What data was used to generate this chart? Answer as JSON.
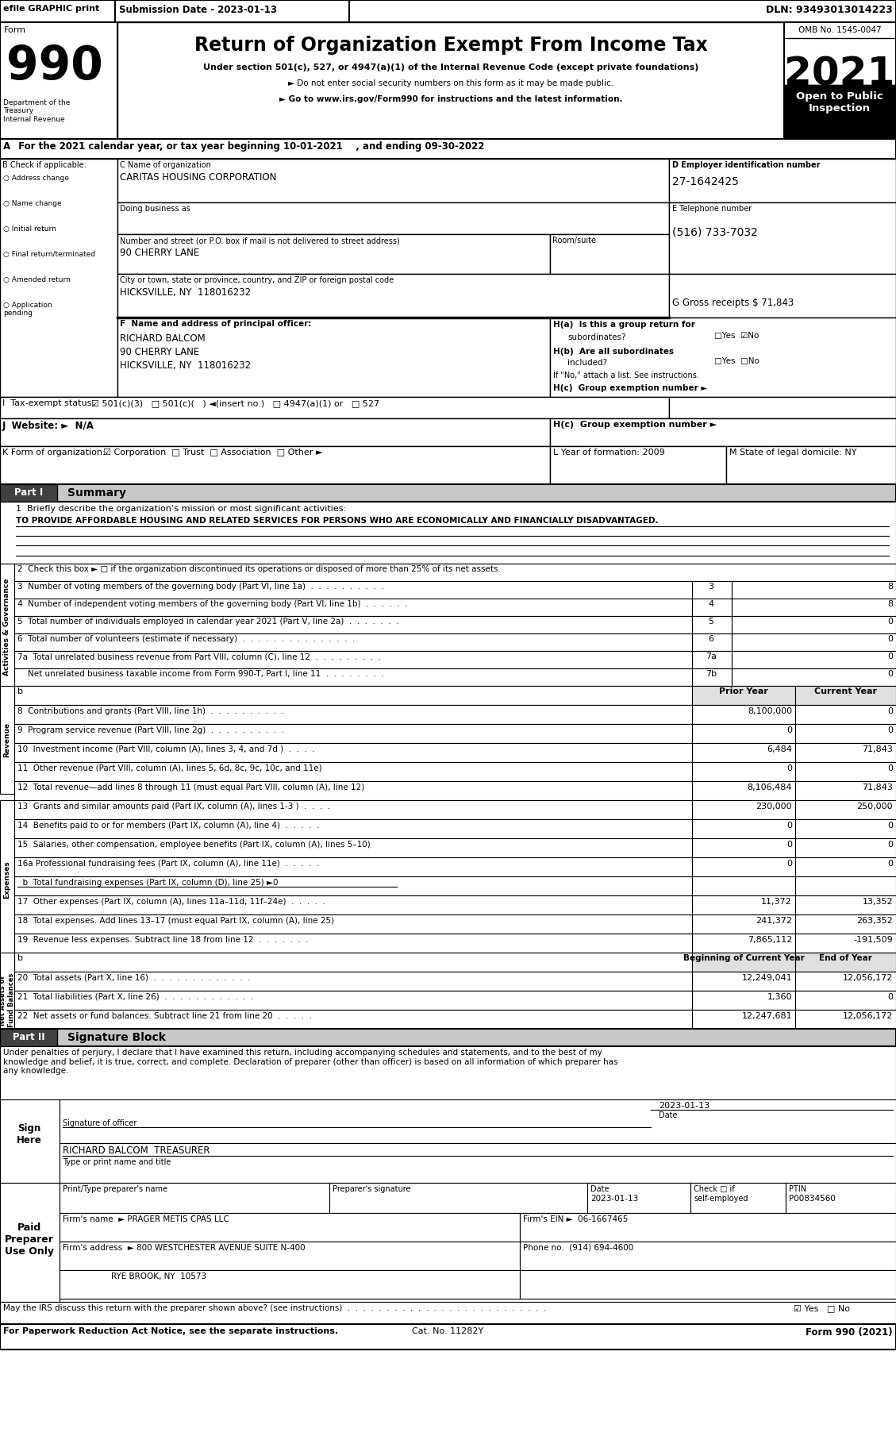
{
  "title": "Return of Organization Exempt From Income Tax",
  "form_number": "990",
  "year": "2021",
  "omb": "OMB No. 1545-0047",
  "open_to_public": "Open to Public\nInspection",
  "efile_text": "efile GRAPHIC print",
  "submission_date": "Submission Date - 2023-01-13",
  "dln": "DLN: 93493013014223",
  "subtitle1": "Under section 501(c), 527, or 4947(a)(1) of the Internal Revenue Code (except private foundations)",
  "bullet1": "► Do not enter social security numbers on this form as it may be made public.",
  "bullet2": "► Go to www.irs.gov/Form990 for instructions and the latest information.",
  "service_line": "A  For the 2021 calendar year, or tax year beginning 10-01-2021    , and ending 09-30-2022",
  "b_label": "B Check if applicable:",
  "check_items": [
    "Address change",
    "Name change",
    "Initial return",
    "Final return/terminated",
    "Amended return",
    "Application\npending"
  ],
  "c_label": "C Name of organization",
  "org_name": "CARITAS HOUSING CORPORATION",
  "dba_label": "Doing business as",
  "street_label": "Number and street (or P.O. box if mail is not delivered to street address)",
  "room_label": "Room/suite",
  "street": "90 CHERRY LANE",
  "city_label": "City or town, state or province, country, and ZIP or foreign postal code",
  "city": "HICKSVILLE, NY  118016232",
  "d_label": "D Employer identification number",
  "ein": "27-1642425",
  "e_label": "E Telephone number",
  "phone": "(516) 733-7032",
  "g_label": "G Gross receipts $ 71,843",
  "f_label": "F  Name and address of principal officer:",
  "principal_name": "RICHARD BALCOM",
  "principal_addr1": "90 CHERRY LANE",
  "principal_addr2": "HICKSVILLE, NY  118016232",
  "ha_label": "H(a)  Is this a group return for",
  "ha_sub": "subordinates?",
  "hb_label": "H(b)  Are all subordinates",
  "hb_sub": "included?",
  "hb_note": "If \"No,\" attach a list. See instructions.",
  "hc_label": "H(c)  Group exemption number ►",
  "i_label": "I  Tax-exempt status:",
  "j_label": "J  Website: ►  N/A",
  "k_label": "K Form of organization:",
  "l_label": "L Year of formation: 2009",
  "m_label": "M State of legal domicile: NY",
  "part1_label": "Part I",
  "part1_title": "Summary",
  "line1_label": "1  Briefly describe the organization’s mission or most significant activities:",
  "line1_value": "TO PROVIDE AFFORDABLE HOUSING AND RELATED SERVICES FOR PERSONS WHO ARE ECONOMICALLY AND FINANCIALLY DISADVANTAGED.",
  "line2_label": "2  Check this box ► □ if the organization discontinued its operations or disposed of more than 25% of its net assets.",
  "line3_label": "3  Number of voting members of the governing body (Part VI, line 1a)  .  .  .  .  .  .  .  .  .  .",
  "line3_num": "3",
  "line3_val": "8",
  "line4_label": "4  Number of independent voting members of the governing body (Part VI, line 1b)  .  .  .  .  .  .",
  "line4_num": "4",
  "line4_val": "8",
  "line5_label": "5  Total number of individuals employed in calendar year 2021 (Part V, line 2a)  .  .  .  .  .  .  .",
  "line5_num": "5",
  "line5_val": "0",
  "line6_label": "6  Total number of volunteers (estimate if necessary)  .  .  .  .  .  .  .  .  .  .  .  .  .  .  .",
  "line6_num": "6",
  "line6_val": "0",
  "line7a_label": "7a  Total unrelated business revenue from Part VIII, column (C), line 12  .  .  .  .  .  .  .  .  .",
  "line7a_num": "7a",
  "line7a_val": "0",
  "line7b_label": "    Net unrelated business taxable income from Form 990-T, Part I, line 11  .  .  .  .  .  .  .  .",
  "line7b_num": "7b",
  "line7b_val": "0",
  "col_prior": "Prior Year",
  "col_current": "Current Year",
  "line8_label": "8  Contributions and grants (Part VIII, line 1h)  .  .  .  .  .  .  .  .  .  .",
  "line8_prior": "8,100,000",
  "line8_current": "0",
  "line9_label": "9  Program service revenue (Part VIII, line 2g)  .  .  .  .  .  .  .  .  .  .",
  "line9_prior": "0",
  "line9_current": "0",
  "line10_label": "10  Investment income (Part VIII, column (A), lines 3, 4, and 7d )  .  .  .  .",
  "line10_prior": "6,484",
  "line10_current": "71,843",
  "line11_label": "11  Other revenue (Part VIII, column (A), lines 5, 6d, 8c, 9c, 10c, and 11e)",
  "line11_prior": "0",
  "line11_current": "0",
  "line12_label": "12  Total revenue—add lines 8 through 11 (must equal Part VIII, column (A), line 12)",
  "line12_prior": "8,106,484",
  "line12_current": "71,843",
  "line13_label": "13  Grants and similar amounts paid (Part IX, column (A), lines 1-3 )  .  .  .  .",
  "line13_prior": "230,000",
  "line13_current": "250,000",
  "line14_label": "14  Benefits paid to or for members (Part IX, column (A), line 4)  .  .  .  .  .",
  "line14_prior": "0",
  "line14_current": "0",
  "line15_label": "15  Salaries, other compensation, employee benefits (Part IX, column (A), lines 5–10)",
  "line15_prior": "0",
  "line15_current": "0",
  "line16a_label": "16a Professional fundraising fees (Part IX, column (A), line 11e)  .  .  .  .  .",
  "line16a_prior": "0",
  "line16a_current": "0",
  "line16b_label": "  b  Total fundraising expenses (Part IX, column (D), line 25) ►0",
  "line17_label": "17  Other expenses (Part IX, column (A), lines 11a–11d, 11f–24e)  .  .  .  .  .",
  "line17_prior": "11,372",
  "line17_current": "13,352",
  "line18_label": "18  Total expenses. Add lines 13–17 (must equal Part IX, column (A), line 25)",
  "line18_prior": "241,372",
  "line18_current": "263,352",
  "line19_label": "19  Revenue less expenses. Subtract line 18 from line 12  .  .  .  .  .  .  .",
  "line19_prior": "7,865,112",
  "line19_current": "-191,509",
  "col_begin": "Beginning of Current Year",
  "col_end": "End of Year",
  "line20_label": "20  Total assets (Part X, line 16)  .  .  .  .  .  .  .  .  .  .  .  .  .",
  "line20_begin": "12,249,041",
  "line20_end": "12,056,172",
  "line21_label": "21  Total liabilities (Part X, line 26)  .  .  .  .  .  .  .  .  .  .  .  .",
  "line21_begin": "1,360",
  "line21_end": "0",
  "line22_label": "22  Net assets or fund balances. Subtract line 21 from line 20  .  .  .  .  .",
  "line22_begin": "12,247,681",
  "line22_end": "12,056,172",
  "part2_label": "Part II",
  "part2_title": "Signature Block",
  "sig_declaration": "Under penalties of perjury, I declare that I have examined this return, including accompanying schedules and statements, and to the best of my\nknowledge and belief, it is true, correct, and complete. Declaration of preparer (other than officer) is based on all information of which preparer has\nany knowledge.",
  "sig_label": "Signature of officer",
  "sig_date": "2023-01-13",
  "sig_name": "RICHARD BALCOM  TREASURER",
  "sig_name_label": "Type or print name and title",
  "preparer_name_label": "Print/Type preparer's name",
  "preparer_sig_label": "Preparer's signature",
  "preparer_date_label": "Date",
  "preparer_check_label": "Check",
  "preparer_ptin_label": "PTIN",
  "preparer_ptin": "P00834560",
  "preparer_date": "2023-01-13",
  "firm_name": "► PRAGER METIS CPAS LLC",
  "firm_ein": "06-1667465",
  "firm_addr": "► 800 WESTCHESTER AVENUE SUITE N-400",
  "firm_city": "RYE BROOK, NY  10573",
  "firm_phone": "(914) 694-4600",
  "irs_discuss_label": "May the IRS discuss this return with the preparer shown above? (see instructions)  .  .  .  .  .  .  .  .  .  .  .  .  .  .  .  .  .  .  .  .  .  .  .  .  .  .",
  "paperwork_label": "For Paperwork Reduction Act Notice, see the separate instructions.",
  "cat_no": "Cat. No. 11282Y",
  "form_footer": "Form 990 (2021)"
}
